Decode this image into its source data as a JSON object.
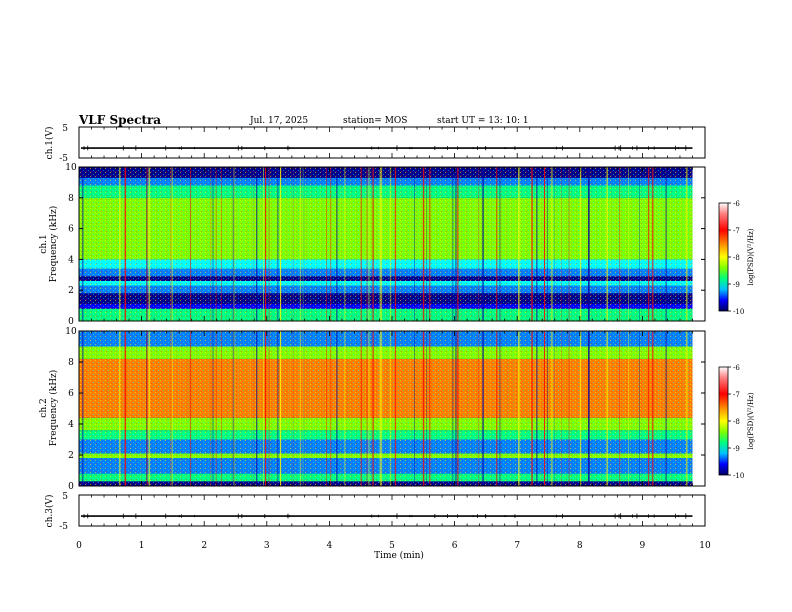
{
  "header": {
    "title": "VLF Spectra",
    "date": "Jul. 17, 2025",
    "station": "station= MOS",
    "start_ut": "start UT =  13: 10: 1"
  },
  "chart_data": [
    {
      "type": "line",
      "name": "ch1-waveform",
      "ylabel": "ch.1(V)",
      "ylim": [
        -5,
        5
      ],
      "yticks": [
        5,
        -5
      ],
      "xlim": [
        0,
        10
      ],
      "baseline_value": -1.8,
      "x_end": 9.8
    },
    {
      "type": "heatmap",
      "name": "ch1-spectrogram",
      "ylabel": "ch.1\nFrequency (kHz)",
      "ylim": [
        0,
        10
      ],
      "yticks": [
        0,
        2,
        4,
        6,
        8,
        10
      ],
      "xlim": [
        0,
        10
      ],
      "x_end": 9.8,
      "colorbar": {
        "label": "log(PSD)(V²/Hz)",
        "range": [
          -10,
          -6
        ],
        "ticks": [
          "-6",
          "-7",
          "-8",
          "-9",
          "-10"
        ]
      },
      "bands_khz_logpsd": [
        [
          0.0,
          0.3,
          -8.2
        ],
        [
          0.3,
          0.8,
          -8.3
        ],
        [
          0.8,
          1.1,
          -9.7
        ],
        [
          1.1,
          1.8,
          -10.0
        ],
        [
          1.8,
          2.3,
          -9.0
        ],
        [
          2.3,
          2.6,
          -8.7
        ],
        [
          2.6,
          2.9,
          -10.0
        ],
        [
          2.9,
          3.4,
          -9.0
        ],
        [
          3.4,
          4.0,
          -8.5
        ],
        [
          4.0,
          5.0,
          -7.9
        ],
        [
          5.0,
          8.0,
          -7.6
        ],
        [
          8.0,
          8.8,
          -8.1
        ],
        [
          8.8,
          9.3,
          -8.9
        ],
        [
          9.3,
          10.0,
          -10.0
        ]
      ]
    },
    {
      "type": "heatmap",
      "name": "ch2-spectrogram",
      "ylabel": "ch.2\nFrequency (kHz)",
      "ylim": [
        0,
        10
      ],
      "yticks": [
        0,
        2,
        4,
        6,
        8,
        10
      ],
      "xlim": [
        0,
        10
      ],
      "x_end": 9.8,
      "colorbar": {
        "label": "log(PSD)(V²/Hz)",
        "range": [
          -10,
          -6
        ],
        "ticks": [
          "-6",
          "-7",
          "-8",
          "-9",
          "-10"
        ]
      },
      "bands_khz_logpsd": [
        [
          0.0,
          0.3,
          -9.8
        ],
        [
          0.3,
          0.8,
          -8.3
        ],
        [
          0.8,
          1.8,
          -8.9
        ],
        [
          1.8,
          2.1,
          -8.0
        ],
        [
          2.1,
          3.0,
          -9.1
        ],
        [
          3.0,
          3.6,
          -8.2
        ],
        [
          3.6,
          4.4,
          -7.6
        ],
        [
          4.4,
          8.2,
          -6.8
        ],
        [
          8.2,
          9.0,
          -7.9
        ],
        [
          9.0,
          10.0,
          -9.2
        ]
      ]
    },
    {
      "type": "line",
      "name": "ch3-waveform",
      "ylabel": "ch.3(V)",
      "ylim": [
        -5,
        5
      ],
      "yticks": [
        5,
        -5
      ],
      "xlim": [
        0,
        10
      ],
      "baseline_value": -1.8,
      "x_end": 9.8,
      "xlabel": "Time (min)",
      "xticks": [
        "0",
        "1",
        "2",
        "3",
        "4",
        "5",
        "6",
        "7",
        "8",
        "9",
        "10"
      ]
    }
  ],
  "colors": {
    "colormap": [
      "#00008f",
      "#0000ff",
      "#0080ff",
      "#00ffff",
      "#00ff80",
      "#80ff00",
      "#ffff00",
      "#ff8000",
      "#ff0000",
      "#ffffff"
    ]
  }
}
